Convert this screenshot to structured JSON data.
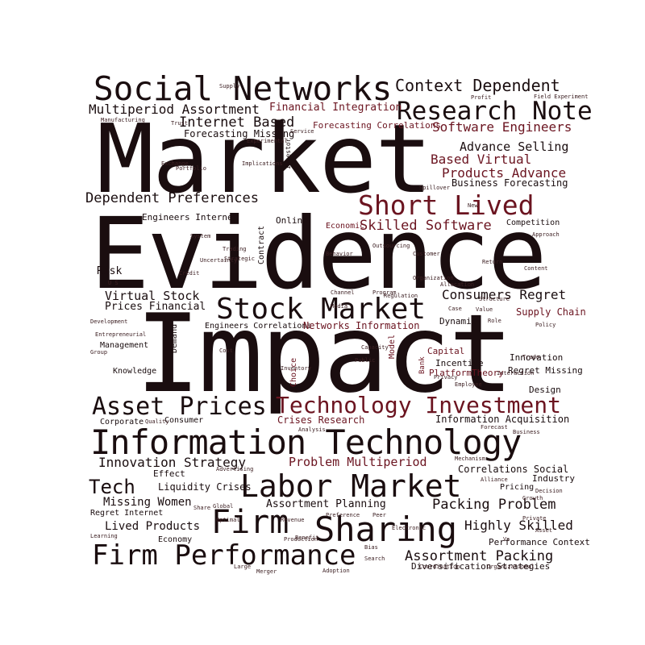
{
  "words": {
    "market": "Market",
    "evidence": "Evidence",
    "impact": "Impact",
    "social_networks": "Social Networks",
    "context_dependent": "Context Dependent",
    "research_note": "Research Note",
    "multiperiod_assortment": "Multiperiod Assortment",
    "financial_integration": "Financial Integration",
    "internet_based": "Internet Based",
    "software_engineers": "Software Engineers",
    "forecasting_correlations": "Forecasting Correlations",
    "forecasting_missing": "Forecasting Missing",
    "advance_selling": "Advance Selling",
    "based_virtual": "Based Virtual",
    "products_advance": "Products Advance",
    "business_forecasting": "Business Forecasting",
    "dependent_preferences": "Dependent Preferences",
    "short_lived": "Short Lived",
    "skilled_software": "Skilled Software",
    "economic": "Economic",
    "engineers_internet": "Engineers Internet",
    "online": "Online",
    "competition": "Competition",
    "risk": "Risk",
    "virtual_stock": "Virtual Stock",
    "prices_financial": "Prices Financial",
    "stock_market": "Stock Market",
    "consumers_regret": "Consumers Regret",
    "supply_chain": "Supply Chain",
    "engineers_correlations": "Engineers Correlations",
    "networks_information": "Networks Information",
    "dynamic": "Dynamic",
    "management": "Management",
    "capital": "Capital",
    "incentive": "Incentive",
    "platformtheory": "PlatformTheory",
    "innovation": "Innovation",
    "regret_missing": "Regret Missing",
    "knowledge": "Knowledge",
    "design": "Design",
    "asset_prices": "Asset Prices",
    "technology_investment": "Technology Investment",
    "crises_research": "Crises Research",
    "information_acquisition": "Information Acquisition",
    "corporate": "Corporate",
    "consumer": "Consumer",
    "information_technology": "Information Technology",
    "innovation_strategy": "Innovation Strategy",
    "problem_multiperiod": "Problem Multiperiod",
    "correlations_social": "Correlations Social",
    "effect": "Effect",
    "industry": "Industry",
    "tech": "Tech",
    "liquidity_crises": "Liquidity Crises",
    "labor_market": "Labor Market",
    "pricing": "Pricing",
    "missing_women": "Missing Women",
    "assortment_planning": "Assortment Planning",
    "packing_problem": "Packing Problem",
    "firm": "Firm",
    "sharing": "Sharing",
    "regret_internet": "Regret Internet",
    "highly_skilled": "Highly Skilled",
    "lived_products": "Lived Products",
    "economy": "Economy",
    "performance_context": "Performance Context",
    "firm_performance": "Firm Performance",
    "assortment_packing": "Assortment Packing",
    "diversification_strategies": "Diversification Strategies",
    "demand": "Demand",
    "contract": "Contract",
    "choice": "Choice",
    "model": "Model",
    "bank": "Bank",
    "investor": "Investor"
  },
  "tiny_words": [
    "Supply",
    "Profit",
    "Field Experiment",
    "Manufacturing",
    "Trust",
    "Service",
    "Experimental",
    "Portfolio",
    "U S",
    "System",
    "Trading",
    "Uncertainty",
    "Credit",
    "Strategic",
    "Customer",
    "Return",
    "Organization",
    "Structure",
    "Value",
    "Role",
    "Policy",
    "Cost",
    "Capacity",
    "Public",
    "Inventory",
    "Entrepreneurial",
    "Development",
    "Group",
    "Quality",
    "Analysis",
    "Forecast",
    "Business",
    "Mechanism",
    "Alliance",
    "Decision",
    "Advertising",
    "Growth",
    "Share",
    "Optimal",
    "Revenue",
    "Preference",
    "Peer",
    "Private",
    "Asset",
    "Learning",
    "Large",
    "Production",
    "Benefit",
    "Bias",
    "Global",
    "Exchange",
    "Implications",
    "Spillover",
    "Behavior",
    "Outsourcing",
    "Case",
    "Channel",
    "Program",
    "Regulation",
    "Media",
    "Allocation",
    "New",
    "Approach",
    "Content",
    "Adoption",
    "Privacy",
    "Employee",
    "Interaction",
    "Trade",
    "Organizational",
    "Vs",
    "Merger",
    "Coordination",
    "Search",
    "Electronic"
  ],
  "colors": {
    "background": "#ffffff",
    "dark_word": "#1a0d0f",
    "accent_word": "#6b1420"
  }
}
